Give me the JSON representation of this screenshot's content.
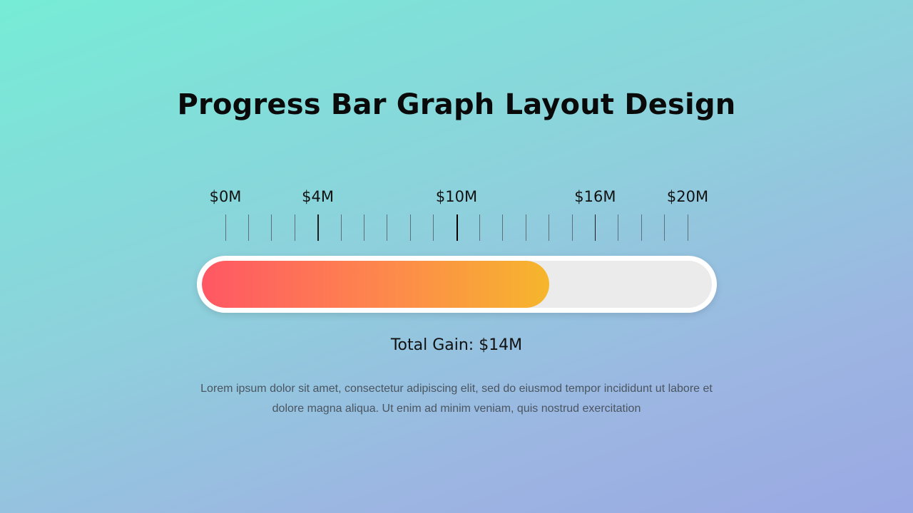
{
  "slide": {
    "title": "Progress Bar Graph Layout Design",
    "total_label": "Total Gain: $14M",
    "body_text": "Lorem ipsum dolor sit amet, consectetur adipiscing elit, sed do eiusmod tempor incididunt ut labore et dolore magna aliqua. Ut enim ad minim veniam, quis nostrud exercitation"
  },
  "chart_data": {
    "type": "bar",
    "orientation": "horizontal-progress",
    "title": "Progress Bar Graph Layout Design",
    "axis": {
      "min": 0,
      "max": 20,
      "unit": "$M",
      "labeled_ticks": [
        {
          "value": 0,
          "label": "$0M"
        },
        {
          "value": 4,
          "label": "$4M"
        },
        {
          "value": 10,
          "label": "$10M"
        },
        {
          "value": 16,
          "label": "$16M"
        },
        {
          "value": 20,
          "label": "$20M"
        }
      ],
      "minor_tick_step": 1
    },
    "value": 14,
    "value_label": "Total Gain: $14M",
    "colors": {
      "fill_start": "#ff5764",
      "fill_mid": "#fd8a4b",
      "fill_end": "#f6b62c",
      "track": "#ebebeb",
      "track_border": "#ffffff"
    }
  }
}
